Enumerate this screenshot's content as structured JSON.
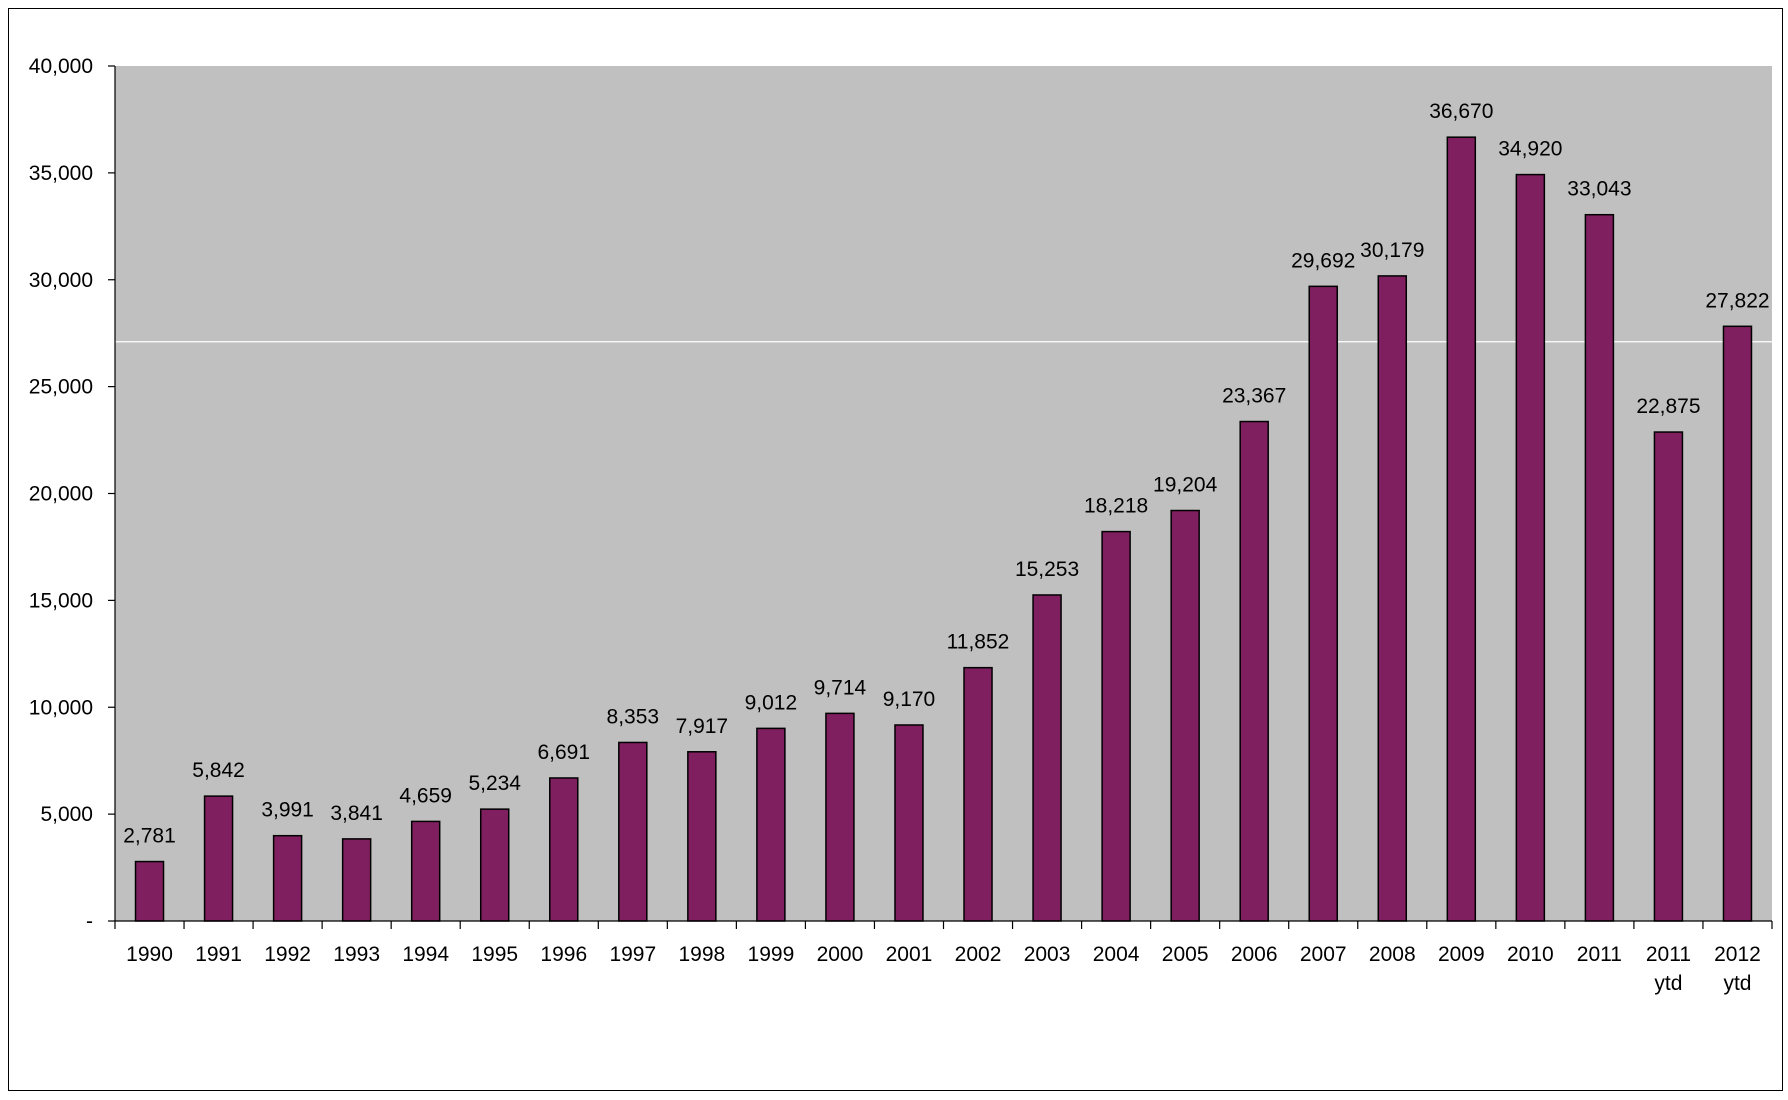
{
  "chart_data": {
    "type": "bar",
    "categories": [
      [
        "1990"
      ],
      [
        "1991"
      ],
      [
        "1992"
      ],
      [
        "1993"
      ],
      [
        "1994"
      ],
      [
        "1995"
      ],
      [
        "1996"
      ],
      [
        "1997"
      ],
      [
        "1998"
      ],
      [
        "1999"
      ],
      [
        "2000"
      ],
      [
        "2001"
      ],
      [
        "2002"
      ],
      [
        "2003"
      ],
      [
        "2004"
      ],
      [
        "2005"
      ],
      [
        "2006"
      ],
      [
        "2007"
      ],
      [
        "2008"
      ],
      [
        "2009"
      ],
      [
        "2010"
      ],
      [
        "2011"
      ],
      [
        "2011",
        "ytd"
      ],
      [
        "2012",
        "ytd"
      ]
    ],
    "values": [
      2781,
      5842,
      3991,
      3841,
      4659,
      5234,
      6691,
      8353,
      7917,
      9012,
      9714,
      9170,
      11852,
      15253,
      18218,
      19204,
      23367,
      29692,
      30179,
      36670,
      34920,
      33043,
      22875,
      27822
    ],
    "value_labels": [
      "2,781",
      "5,842",
      "3,991",
      "3,841",
      "4,659",
      "5,234",
      "6,691",
      "8,353",
      "7,917",
      "9,012",
      "9,714",
      "9,170",
      "11,852",
      "15,253",
      "18,218",
      "19,204",
      "23,367",
      "29,692",
      "30,179",
      "36,670",
      "34,920",
      "33,043",
      "22,875",
      "27,822"
    ],
    "y_ticks": [
      0,
      5000,
      10000,
      15000,
      20000,
      25000,
      30000,
      35000,
      40000
    ],
    "y_tick_labels": [
      "-",
      "5,000",
      "10,000",
      "15,000",
      "20,000",
      "25,000",
      "30,000",
      "35,000",
      "40,000"
    ],
    "ylim": [
      0,
      40000
    ],
    "reference_line": 27100,
    "title": "",
    "xlabel": "",
    "ylabel": "",
    "legend": "none",
    "grid": false,
    "colors": {
      "bar": "#7f1f5f",
      "bar_outline": "#000000",
      "plot_background": "#c0c0c0",
      "reference_line": "#ffffff"
    }
  }
}
